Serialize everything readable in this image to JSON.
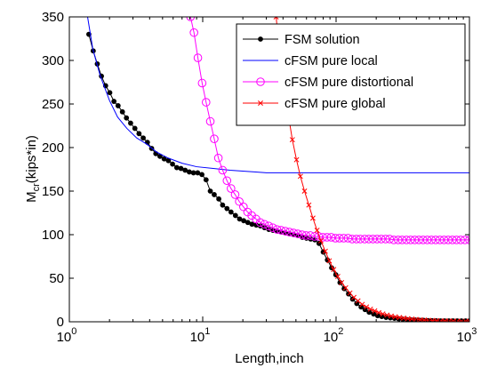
{
  "chart_data": {
    "type": "line",
    "title": "",
    "xlabel": "Length,inch",
    "ylabel": {
      "main": "M",
      "sub": "cr",
      "rest": "(kips*in)"
    },
    "x_scale": "log",
    "xlim": [
      1,
      1000
    ],
    "ylim": [
      0,
      350
    ],
    "x_ticks": [
      {
        "value": 1,
        "base": "10",
        "exp": "0"
      },
      {
        "value": 10,
        "base": "10",
        "exp": "1"
      },
      {
        "value": 100,
        "base": "10",
        "exp": "2"
      },
      {
        "value": 1000,
        "base": "10",
        "exp": "3"
      }
    ],
    "y_ticks": [
      0,
      50,
      100,
      150,
      200,
      250,
      300,
      350
    ],
    "grid": false,
    "legend_position": "top-right",
    "series": [
      {
        "name": "FSM solution",
        "color": "#000000",
        "marker": "dot",
        "x": [
          1.4,
          1.51,
          1.62,
          1.74,
          1.87,
          2.01,
          2.16,
          2.32,
          2.5,
          2.68,
          2.88,
          3.1,
          3.33,
          3.58,
          3.85,
          4.14,
          4.45,
          4.78,
          5.14,
          5.53,
          5.94,
          6.39,
          6.87,
          7.38,
          7.93,
          8.53,
          9.17,
          9.86,
          10.6,
          11.4,
          12.2,
          13.2,
          14.1,
          15.2,
          16.3,
          17.6,
          18.9,
          20.3,
          21.8,
          23.4,
          25.2,
          27.1,
          29.1,
          31.3,
          33.6,
          36.2,
          38.9,
          41.8,
          44.9,
          48.3,
          51.9,
          55.8,
          60,
          64.5,
          69.3,
          74.5,
          80.1,
          86.1,
          92.6,
          99.5,
          107,
          115,
          124,
          133,
          143,
          154,
          165,
          177,
          191,
          205,
          220,
          237,
          255,
          274,
          294,
          316,
          340,
          366,
          393,
          423,
          454,
          488,
          525,
          564,
          607,
          652,
          701,
          754,
          810,
          871,
          936,
          1000
        ],
        "y": [
          330,
          311,
          296,
          282,
          271,
          263,
          253,
          248,
          241,
          234,
          228,
          222,
          216,
          211,
          206,
          199,
          193,
          190,
          187,
          185,
          181,
          177,
          176,
          174,
          172,
          171,
          171,
          169,
          163,
          150,
          146,
          141,
          134,
          130,
          126,
          122,
          118,
          116,
          114,
          112,
          111,
          110,
          108,
          106,
          105,
          104,
          103,
          102,
          101,
          100,
          99,
          97,
          96,
          95,
          94,
          90,
          80,
          71,
          62,
          54,
          45,
          38,
          32,
          26,
          21,
          17,
          14,
          11,
          9,
          7,
          6,
          5,
          4.5,
          4,
          3.5,
          3,
          2.5,
          2.2,
          2,
          1.8,
          1.6,
          1.4,
          1.2,
          1.1,
          1,
          1,
          1,
          1,
          1,
          1,
          1,
          1
        ]
      },
      {
        "name": "cFSM pure local",
        "color": "#0000ff",
        "marker": "none",
        "x": [
          1.37,
          1.5,
          1.7,
          2,
          2.3,
          2.7,
          3.2,
          3.8,
          4.5,
          5.5,
          7,
          9,
          12,
          16,
          20,
          25,
          30,
          50,
          100,
          200,
          500,
          1000
        ],
        "y": [
          350,
          313,
          283,
          254,
          235,
          222,
          211,
          204,
          195,
          188,
          182,
          178,
          176,
          174,
          173,
          172,
          171,
          171,
          171,
          171,
          171,
          171
        ]
      },
      {
        "name": "cFSM pure distortional",
        "color": "#ff00ff",
        "marker": "circle",
        "x": [
          8.1,
          8.6,
          9.2,
          9.9,
          10.6,
          11.4,
          12.2,
          13.1,
          14.1,
          15.2,
          16.3,
          17.5,
          18.8,
          20.2,
          21.7,
          23.3,
          25.1,
          27,
          29,
          31.2,
          33.5,
          36,
          38.7,
          41.6,
          44.7,
          48,
          51.6,
          55.5,
          59.6,
          64.1,
          68.9,
          74,
          79.6,
          85.5,
          91.9,
          98.8,
          106,
          114,
          123,
          132,
          142,
          152,
          164,
          176,
          189,
          203,
          218,
          235,
          252,
          271,
          292,
          313,
          337,
          362,
          389,
          418,
          449,
          483,
          519,
          558,
          600,
          645,
          693,
          745,
          800,
          860,
          925,
          1000
        ],
        "y": [
          350,
          332,
          303,
          274,
          252,
          230,
          210,
          188,
          174,
          162,
          153,
          146,
          138,
          132,
          126,
          122,
          118,
          114,
          112,
          110,
          108,
          106,
          105,
          104,
          103,
          102,
          101,
          100,
          99,
          99,
          98,
          98,
          97,
          97,
          97,
          96,
          96,
          96,
          96,
          95,
          95,
          95,
          95,
          95,
          95,
          95,
          95,
          95,
          95,
          94,
          94,
          94,
          94,
          94,
          94,
          94,
          94,
          94,
          94,
          94,
          94,
          94,
          94,
          94,
          94,
          94,
          94,
          94
        ]
      },
      {
        "name": "cFSM pure global",
        "color": "#ff0000",
        "marker": "x",
        "x": [
          35.5,
          38,
          41,
          44,
          47,
          50.5,
          54,
          58,
          62.5,
          67,
          72,
          77,
          83,
          89,
          96,
          103,
          110,
          118,
          127,
          136,
          146,
          157,
          169,
          181,
          195,
          209,
          224,
          241,
          259,
          278,
          299,
          321,
          345,
          370,
          397,
          427,
          458,
          492,
          529,
          568,
          610,
          655,
          704,
          756,
          812,
          872,
          937,
          1000
        ],
        "y": [
          350,
          306,
          268,
          236,
          209,
          186,
          167,
          150,
          134,
          119,
          105,
          93,
          81,
          70,
          60,
          52,
          45,
          39,
          33,
          28,
          24,
          20,
          17,
          14.5,
          12.5,
          10.5,
          9,
          7.7,
          6.6,
          5.7,
          4.9,
          4.2,
          3.6,
          3.1,
          2.7,
          2.3,
          2,
          1.7,
          1.5,
          1.3,
          1.1,
          1,
          0.9,
          0.8,
          0.7,
          0.6,
          0.55,
          0.5
        ]
      }
    ]
  }
}
